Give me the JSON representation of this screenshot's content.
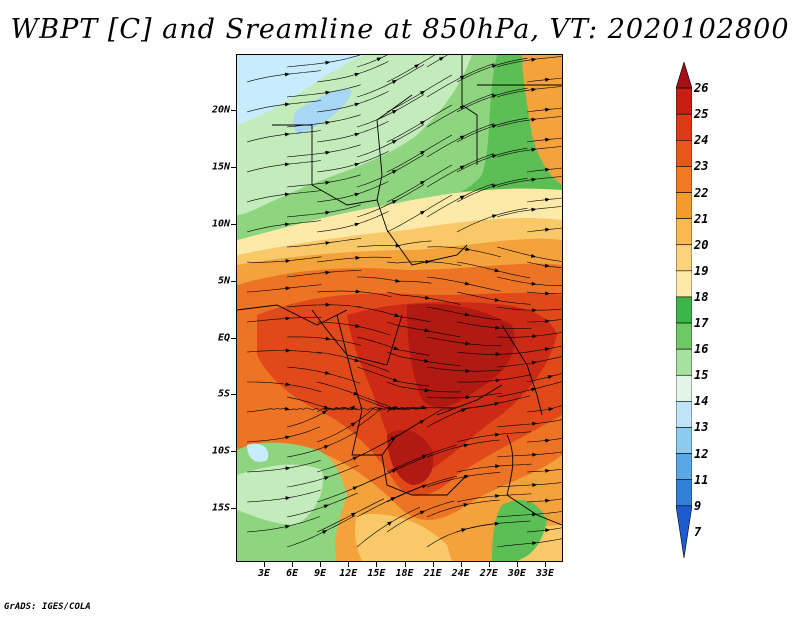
{
  "title": "WBPT [C] and Sreamline at 850hPa, VT: 2020102800",
  "footer": "GrADS: IGES/COLA",
  "axes": {
    "y_labels": [
      "20N",
      "15N",
      "10N",
      "5N",
      "EQ",
      "5S",
      "10S",
      "15S"
    ],
    "x_labels": [
      "3E",
      "6E",
      "9E",
      "12E",
      "15E",
      "18E",
      "21E",
      "24E",
      "27E",
      "30E",
      "33E"
    ]
  },
  "colorbar": {
    "labels": [
      "26",
      "25",
      "24",
      "23",
      "22",
      "21",
      "20",
      "19",
      "18",
      "17",
      "16",
      "15",
      "14",
      "13",
      "12",
      "11",
      "9",
      "7"
    ],
    "colors": [
      "#a50f15",
      "#c81e14",
      "#de3a16",
      "#e9561c",
      "#f07a22",
      "#f59a2c",
      "#f9b850",
      "#fcd27c",
      "#fde9a8",
      "#3cb54a",
      "#6ec865",
      "#a7e0a0",
      "#e2f5e6",
      "#bfe4f7",
      "#8ccaf0",
      "#5aa7e6",
      "#3280d8",
      "#1f5bd0"
    ]
  },
  "map_colors": {
    "green_dark": "#5cbf55",
    "green_mid": "#8fd47e",
    "green_light": "#c3ebbc",
    "pale_blue": "#c8ecfb",
    "blue": "#a8d6f5",
    "cream": "#fde9a8",
    "yellow": "#f9c868",
    "orange_light": "#f4a23c",
    "orange": "#ec7424",
    "red_orange": "#e04a1a",
    "red": "#cc2a14",
    "dark_red": "#b01a12"
  }
}
